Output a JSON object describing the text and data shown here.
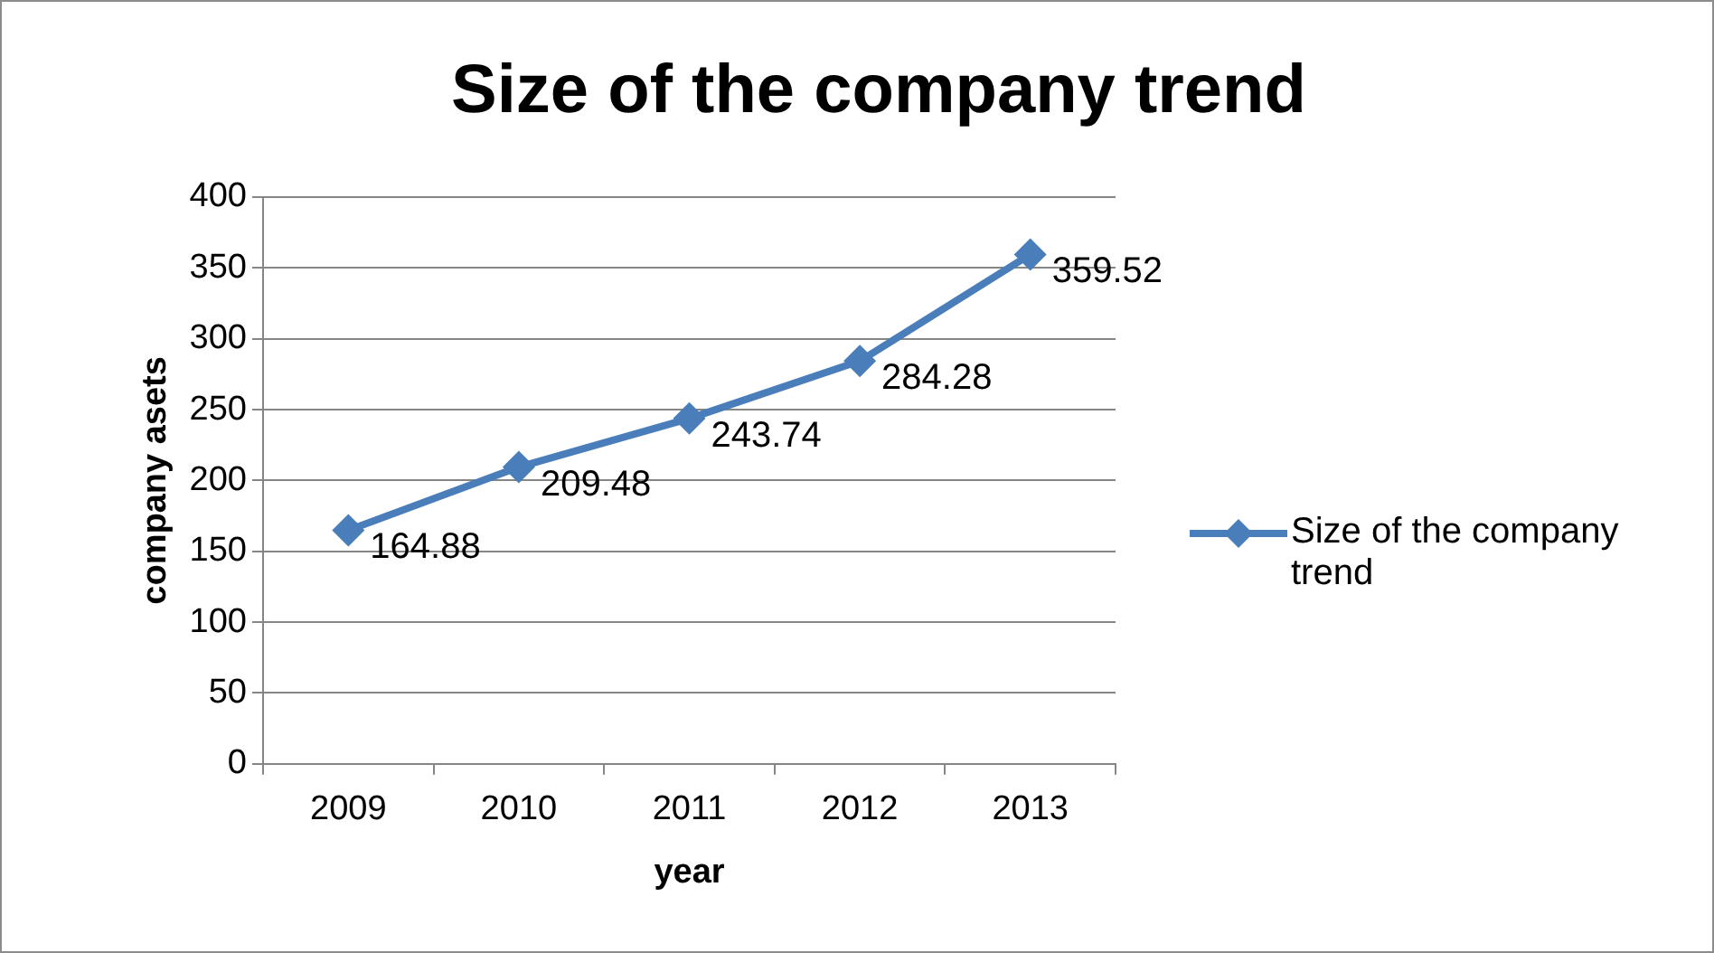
{
  "chart_data": {
    "type": "line",
    "title": "Size of the company trend",
    "xlabel": "year",
    "ylabel": "company asets",
    "categories": [
      "2009",
      "2010",
      "2011",
      "2012",
      "2013"
    ],
    "series": [
      {
        "name": "Size of the company trend",
        "color": "#4a7ebb",
        "values": [
          164.88,
          209.48,
          243.74,
          284.28,
          359.52
        ]
      }
    ],
    "ylim": [
      0,
      400
    ],
    "yticks": [
      0,
      50,
      100,
      150,
      200,
      250,
      300,
      350,
      400
    ],
    "grid": "y",
    "legend": "right",
    "marker": "diamond",
    "line_style": "solid",
    "data_labels": true
  }
}
